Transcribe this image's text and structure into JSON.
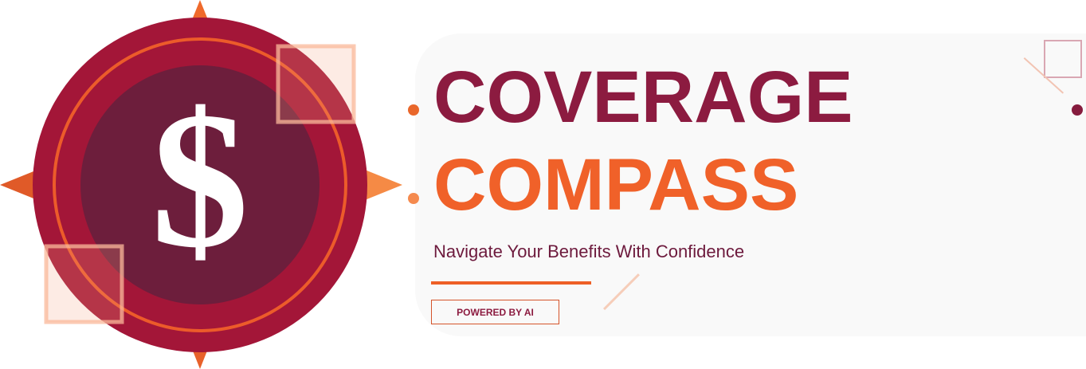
{
  "logo": {
    "symbol": "$",
    "icon": "dollar-compass-icon",
    "colors": {
      "outer_ring": "#a31638",
      "inner_circle": "#6d1e3c",
      "ring_stroke": "#ed5a28",
      "compass_points": "#f0682b",
      "symbol": "#ffffff",
      "accent_squares": "#f7a684"
    }
  },
  "title": {
    "line1": "COVERAGE",
    "line2": "COMPASS",
    "line1_color": "#8c1b40",
    "line2_color": "#f06129"
  },
  "tagline": "Navigate Your Benefits With Confidence",
  "badge": {
    "label": "POWERED BY AI"
  }
}
